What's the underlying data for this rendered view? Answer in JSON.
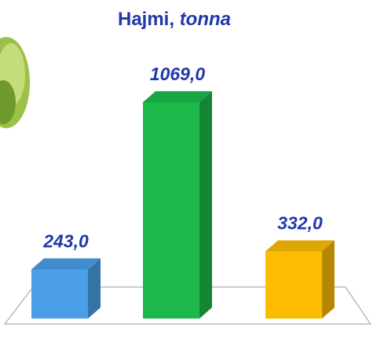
{
  "chart_data": {
    "type": "bar3d",
    "title": "Hajmi,",
    "title_unit": "tonna",
    "categories": [
      null,
      null,
      null
    ],
    "values": [
      243.0,
      1069.0,
      332.0
    ],
    "value_labels": [
      "243,0",
      "1069,0",
      "332,0"
    ],
    "colors": [
      "#4a9fe6",
      "#1cb94a",
      "#fdbc00"
    ]
  }
}
